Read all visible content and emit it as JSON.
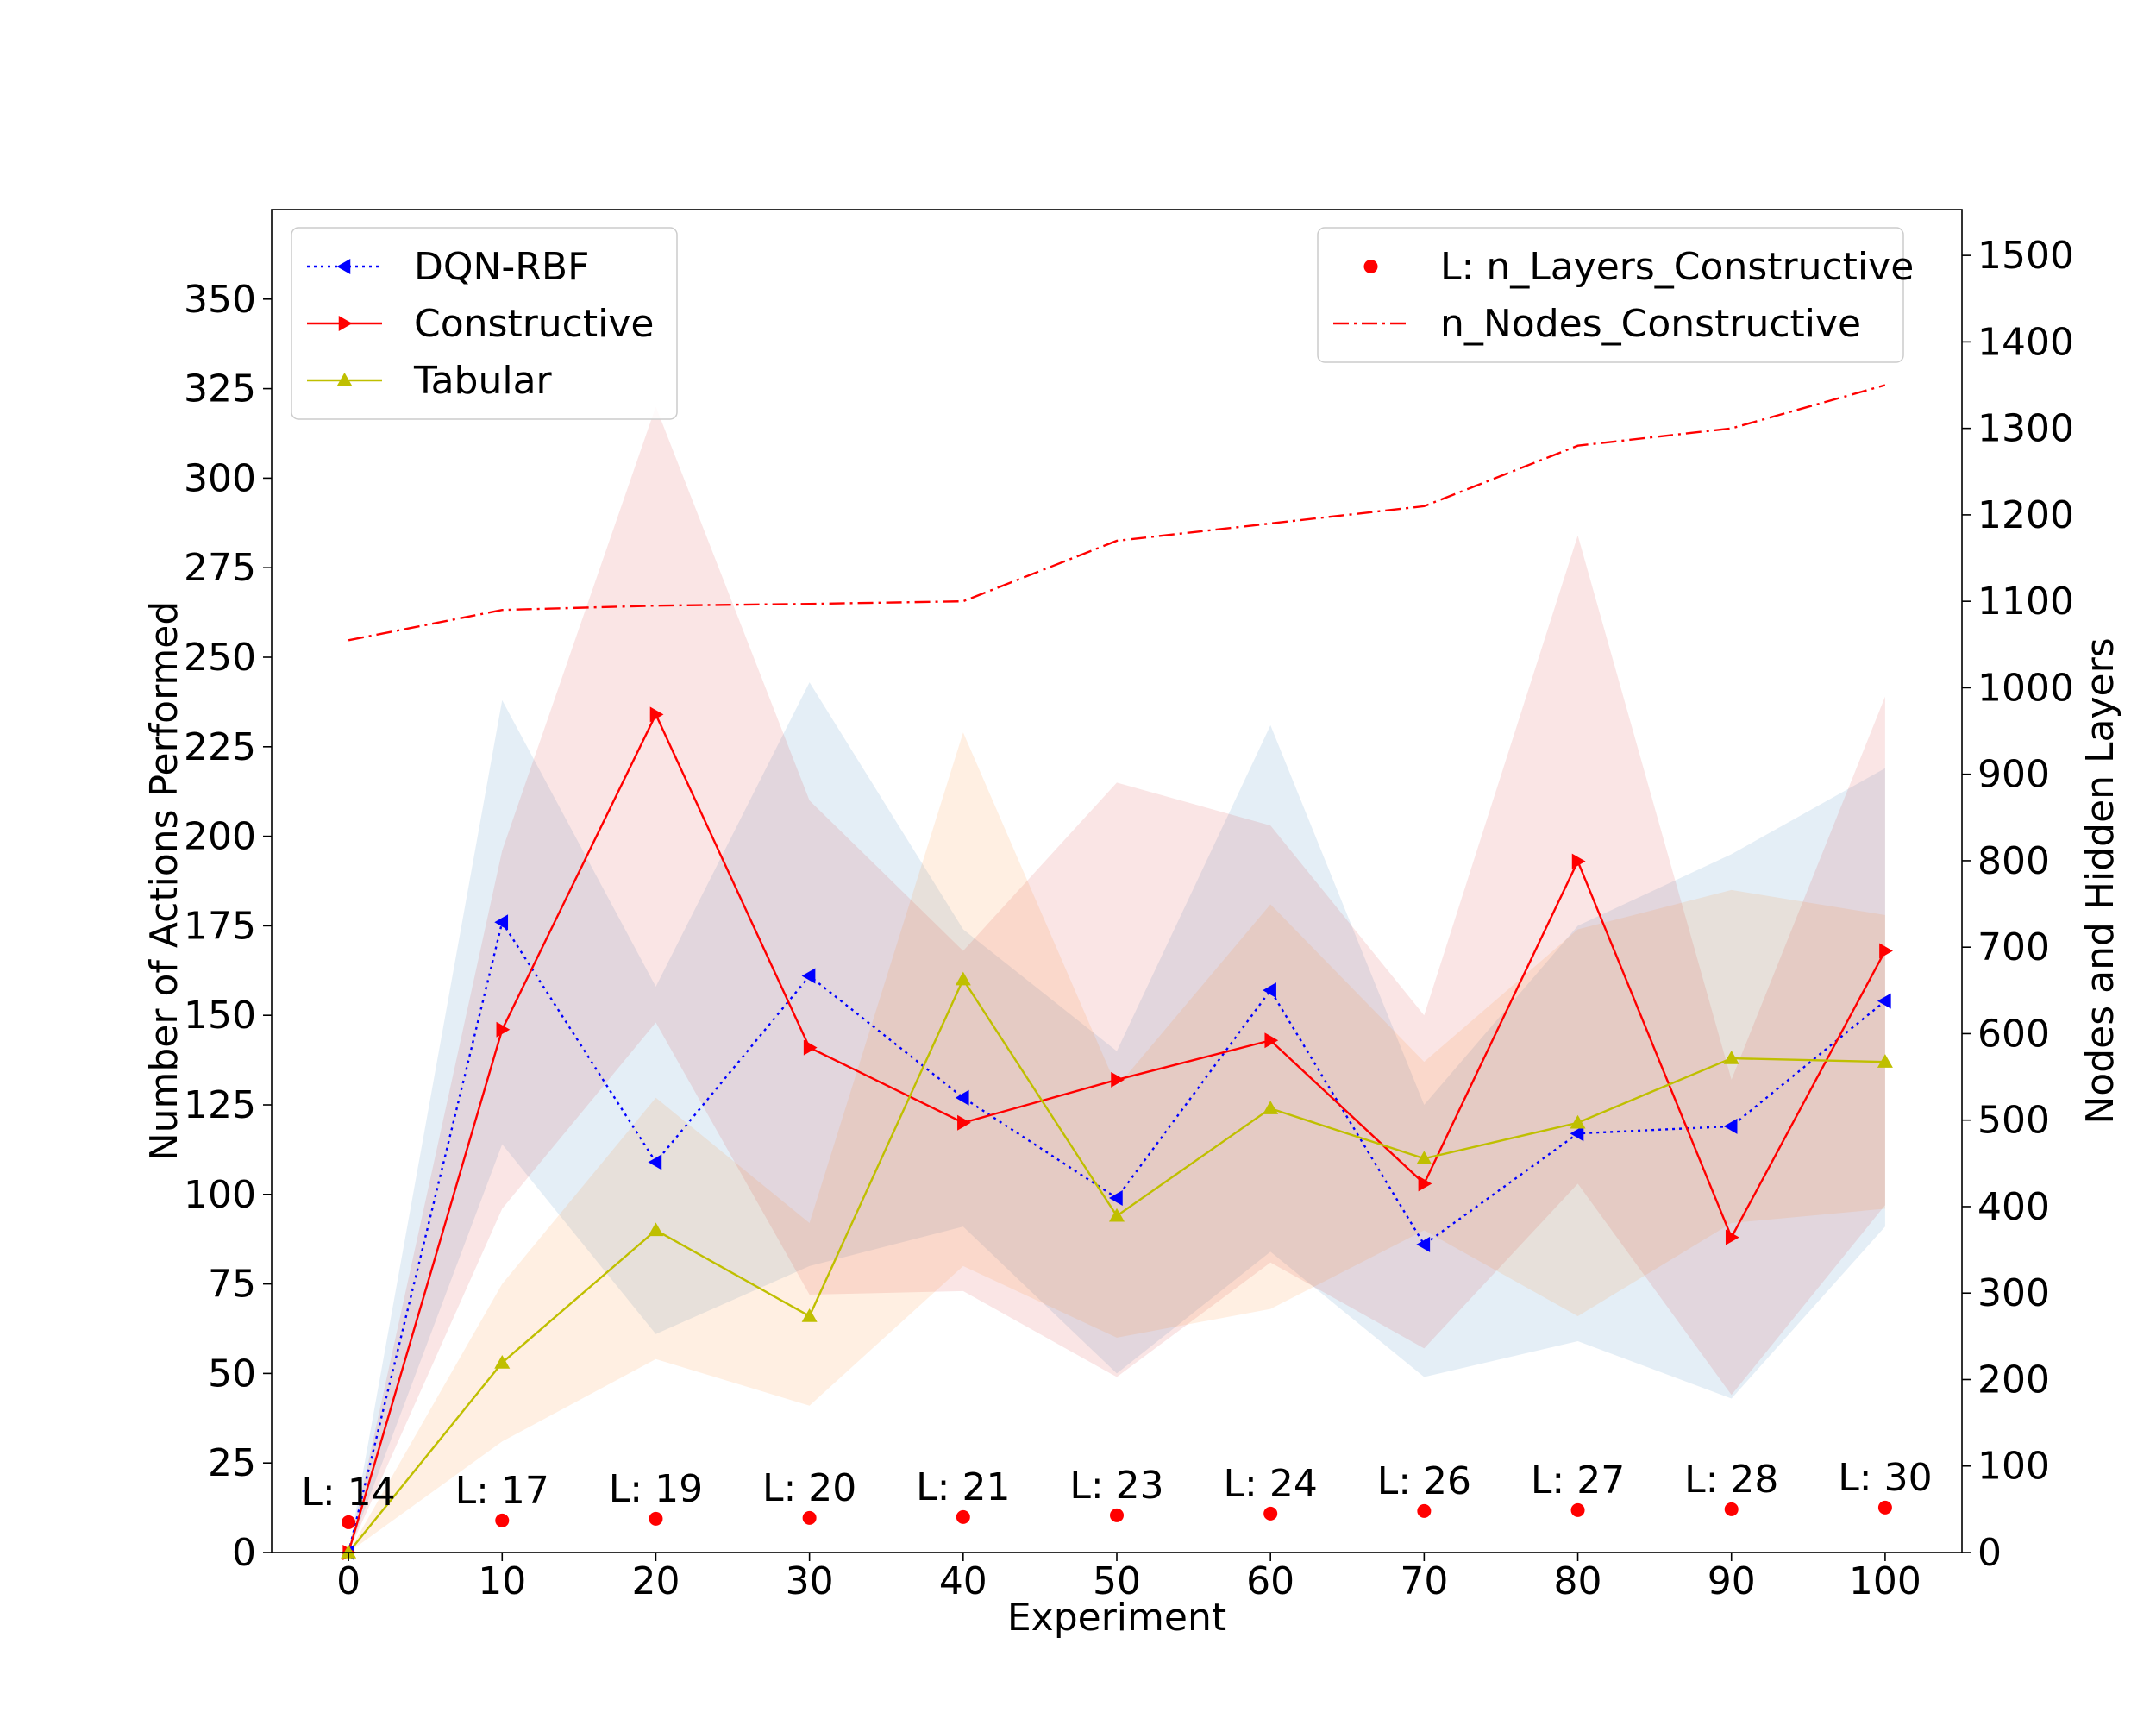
{
  "chart_data": {
    "type": "line",
    "xlabel": "Experiment",
    "ylabel": "Number of Actions Performed",
    "y2label": "Nodes and Hidden Layers",
    "xlim": [
      -5,
      105
    ],
    "ylim": [
      0,
      375
    ],
    "y2lim": [
      0,
      1553
    ],
    "xticks": [
      0,
      10,
      20,
      30,
      40,
      50,
      60,
      70,
      80,
      90,
      100
    ],
    "yticks": [
      0,
      25,
      50,
      75,
      100,
      125,
      150,
      175,
      200,
      225,
      250,
      275,
      300,
      325,
      350
    ],
    "y2ticks": [
      0,
      100,
      200,
      300,
      400,
      500,
      600,
      700,
      800,
      900,
      1000,
      1100,
      1200,
      1300,
      1400,
      1500
    ],
    "x": [
      0,
      10,
      20,
      30,
      40,
      50,
      60,
      70,
      80,
      90,
      100
    ],
    "series": [
      {
        "name": "DQN-RBF",
        "axis": "left",
        "color": "#0000ff",
        "style": "dotted",
        "marker": "triangle-left",
        "values": [
          0,
          176,
          109,
          161,
          127,
          99,
          157,
          86,
          117,
          119,
          154
        ],
        "band_lower": [
          0,
          114,
          61,
          80,
          91,
          50,
          84,
          49,
          59,
          43,
          91
        ],
        "band_upper": [
          0,
          238,
          158,
          243,
          174,
          140,
          231,
          125,
          175,
          195,
          219
        ],
        "band_color": "#1f77b4"
      },
      {
        "name": "Constructive",
        "axis": "left",
        "color": "#ff0000",
        "style": "solid",
        "marker": "triangle-right",
        "values": [
          0,
          146,
          234,
          141,
          120,
          132,
          143,
          103,
          193,
          88,
          168
        ],
        "band_lower": [
          0,
          96,
          148,
          72,
          73,
          49,
          81,
          57,
          103,
          44,
          97
        ],
        "band_upper": [
          0,
          196,
          320,
          210,
          168,
          215,
          203,
          150,
          284,
          132,
          239
        ],
        "band_color": "#d62728"
      },
      {
        "name": "Tabular",
        "axis": "left",
        "color": "#bfbf00",
        "style": "solid",
        "marker": "triangle-up",
        "values": [
          0,
          53,
          90,
          66,
          160,
          94,
          124,
          110,
          120,
          138,
          137
        ],
        "band_lower": [
          0,
          31,
          54,
          41,
          80,
          60,
          68,
          90,
          66,
          92,
          96
        ],
        "band_upper": [
          0,
          75,
          127,
          92,
          229,
          130,
          181,
          137,
          174,
          185,
          178
        ],
        "band_color": "#ff7f0e"
      },
      {
        "name": "L: n_Layers_Constructive",
        "axis": "right",
        "color": "#ff0000",
        "style": "scatter",
        "marker": "circle",
        "values": [
          35,
          37,
          39,
          40,
          41,
          43,
          45,
          48,
          49,
          50,
          52
        ],
        "labels": [
          "L: 14",
          "L: 17",
          "L: 19",
          "L: 20",
          "L: 21",
          "L: 23",
          "L: 24",
          "L: 26",
          "L: 27",
          "L: 28",
          "L: 30"
        ]
      },
      {
        "name": "n_Nodes_Constructive",
        "axis": "right",
        "color": "#ff0000",
        "style": "dashdot",
        "marker": "none",
        "values": [
          1055,
          1090,
          1095,
          1097,
          1100,
          1170,
          1190,
          1210,
          1280,
          1300,
          1350
        ]
      }
    ],
    "legend_left": {
      "placement": "top-left",
      "items": [
        "DQN-RBF",
        "Constructive",
        "Tabular"
      ]
    },
    "legend_right": {
      "placement": "top-right",
      "items": [
        "L: n_Layers_Constructive",
        "n_Nodes_Constructive"
      ]
    },
    "grid": false
  }
}
